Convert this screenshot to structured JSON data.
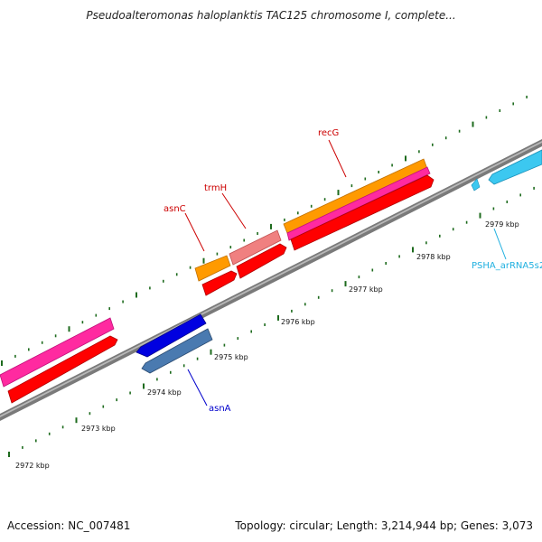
{
  "title": "Pseudoalteromonas haloplanktis TAC125 chromosome I, complete...",
  "ruler_labels": [
    "2972 kbp",
    "2973 kbp",
    "2974 kbp",
    "2975 kbp",
    "2976 kbp",
    "2977 kbp",
    "2978 kbp",
    "2979 kbp"
  ],
  "gene_labels": {
    "recG": "recG",
    "trmH": "trmH",
    "asnC": "asnC",
    "asnA": "asnA",
    "psha": "PSHA_arRNA5s2"
  },
  "colors": {
    "backbone": "#8c8c8c",
    "tick": "#1e6b1e",
    "orange": "#ff9a00",
    "pink": "#ff2aa0",
    "red": "#ff0000",
    "salmon": "#f08080",
    "blue": "#0000e0",
    "steelblue": "#4a7ab0",
    "cyan": "#3cc8f0",
    "label_red": "#cc0000",
    "label_blue": "#0000cc",
    "label_cyan": "#20b0e0"
  },
  "footer": {
    "accession": "Accession: NC_007481",
    "topology": "Topology: circular; Length: 3,214,944 bp; Genes: 3,073"
  }
}
